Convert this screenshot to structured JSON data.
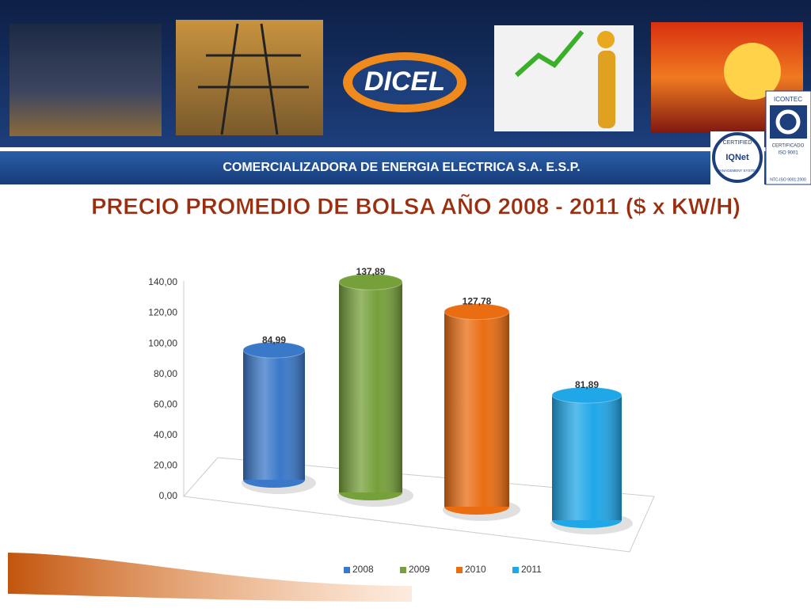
{
  "header": {
    "logo": "DICEL",
    "company": "COMERCIALIZADORA DE ENERGIA ELECTRICA S.A. E.S.P.",
    "icontec": [
      "ICONTEC",
      "CERTIFICADO",
      "ISO 9001",
      "NTC-ISO 9001:2000"
    ],
    "iqnet": [
      "CERTIFIED",
      "IQNet",
      "MANAGEMENT SYSTEM"
    ]
  },
  "chart_data": {
    "type": "bar",
    "title": "PRECIO PROMEDIO DE BOLSA AÑO  2008 - 2011 ($ x KW/H)",
    "categories": [
      "2008",
      "2009",
      "2010",
      "2011"
    ],
    "values": [
      84.99,
      137.89,
      127.78,
      81.89
    ],
    "value_labels": [
      "84,99",
      "137,89",
      "127,78",
      "81,89"
    ],
    "colors": [
      "#3a78c9",
      "#76a03a",
      "#ea6d12",
      "#1fa7e8"
    ],
    "ylim": [
      0,
      140
    ],
    "yticks": [
      {
        "value": 0,
        "label": "0,00"
      },
      {
        "value": 20,
        "label": "20,00"
      },
      {
        "value": 40,
        "label": "40,00"
      },
      {
        "value": 60,
        "label": "60,00"
      },
      {
        "value": 80,
        "label": "80,00"
      },
      {
        "value": 100,
        "label": "100,00"
      },
      {
        "value": 120,
        "label": "120,00"
      },
      {
        "value": 140,
        "label": "140,00"
      }
    ],
    "legend": "bottom"
  }
}
